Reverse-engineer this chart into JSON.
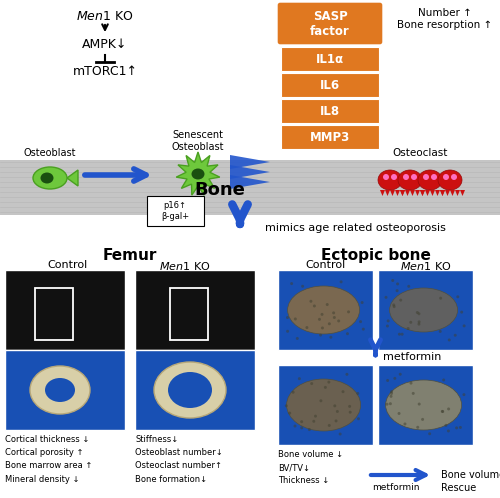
{
  "bg_color": "#ffffff",
  "orange": "#e07820",
  "blue": "#2255cc",
  "bone_gray": "#c0c0c0",
  "sasp_items": [
    "IL1α",
    "IL6",
    "IL8",
    "MMP3"
  ],
  "top": {
    "men1ko": "Men1 KO",
    "ampk": "AMPK↓",
    "mtorc": "mTORC1↑",
    "osteoblast": "Osteoblast",
    "senescent": "Senescent\nOsteoblast",
    "p16": "p16↑\nβ-gal+",
    "bone": "Bone",
    "sasp": "SASP\nfactor",
    "number": "Number ↑\nBone resorption ↑",
    "osteoclast": "Osteoclast",
    "mimics": "mimics age related osteoporosis"
  },
  "bottom": {
    "femur": "Femur",
    "ectopic": "Ectopic bone",
    "control": "Control",
    "men1ko": "Men1 KO",
    "control2": "Control",
    "men1ko2": "Men1 KO",
    "metformin": "metformin",
    "stats1": "Cortical thickness ↓\nCortical porosity ↑\nBone marrow area ↑\nMineral density ↓",
    "stats2": "Stiffness↓\nOsteoblast number↓\nOsteoclast number↑\nBone formation↓",
    "ectopic_stats": "Bone volume ↓\nBV/TV↓\nThickness ↓",
    "metformin2": "metformin",
    "rescue": "Bone volume\nRescue"
  }
}
